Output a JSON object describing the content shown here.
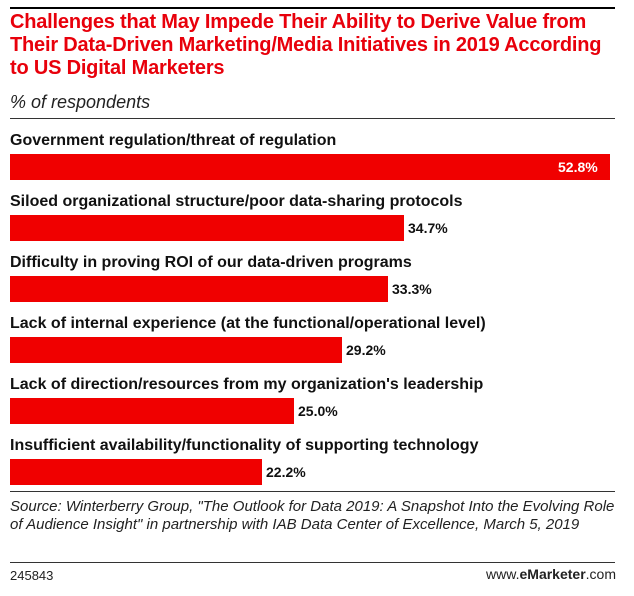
{
  "header": {
    "title": "Challenges that May Impede Their Ability to Derive Value from Their Data-Driven Marketing/Media Initiatives in 2019 According to US Digital Marketers",
    "subtitle": "% of respondents"
  },
  "chart_data": {
    "type": "bar",
    "orientation": "horizontal",
    "title": "Challenges that May Impede Their Ability to Derive Value from Their Data-Driven Marketing/Media Initiatives in 2019 According to US Digital Marketers",
    "subtitle": "% of respondents",
    "categories": [
      "Government regulation/threat of regulation",
      "Siloed organizational structure/poor data-sharing protocols",
      "Difficulty in proving ROI of our data-driven programs",
      "Lack of internal experience (at the functional/operational level)",
      "Lack of direction/resources from my organization's leadership",
      "Insufficient availability/functionality of supporting technology"
    ],
    "values": [
      52.8,
      34.7,
      33.3,
      29.2,
      25.0,
      22.2
    ],
    "value_labels": [
      "52.8%",
      "34.7%",
      "33.3%",
      "29.2%",
      "25.0%",
      "22.2%"
    ],
    "unit": "%",
    "xlim": [
      0,
      52.8
    ],
    "grid": false,
    "bar_color": "#f00000"
  },
  "footer": {
    "source": "Source: Winterberry Group, \"The Outlook for Data 2019: A Snapshot Into the Evolving Role of Audience Insight\" in partnership with IAB Data Center of Excellence, March 5, 2019",
    "chart_id": "245843",
    "brand_prefix": "www.",
    "brand_name": "eMarketer",
    "brand_suffix": ".com"
  }
}
